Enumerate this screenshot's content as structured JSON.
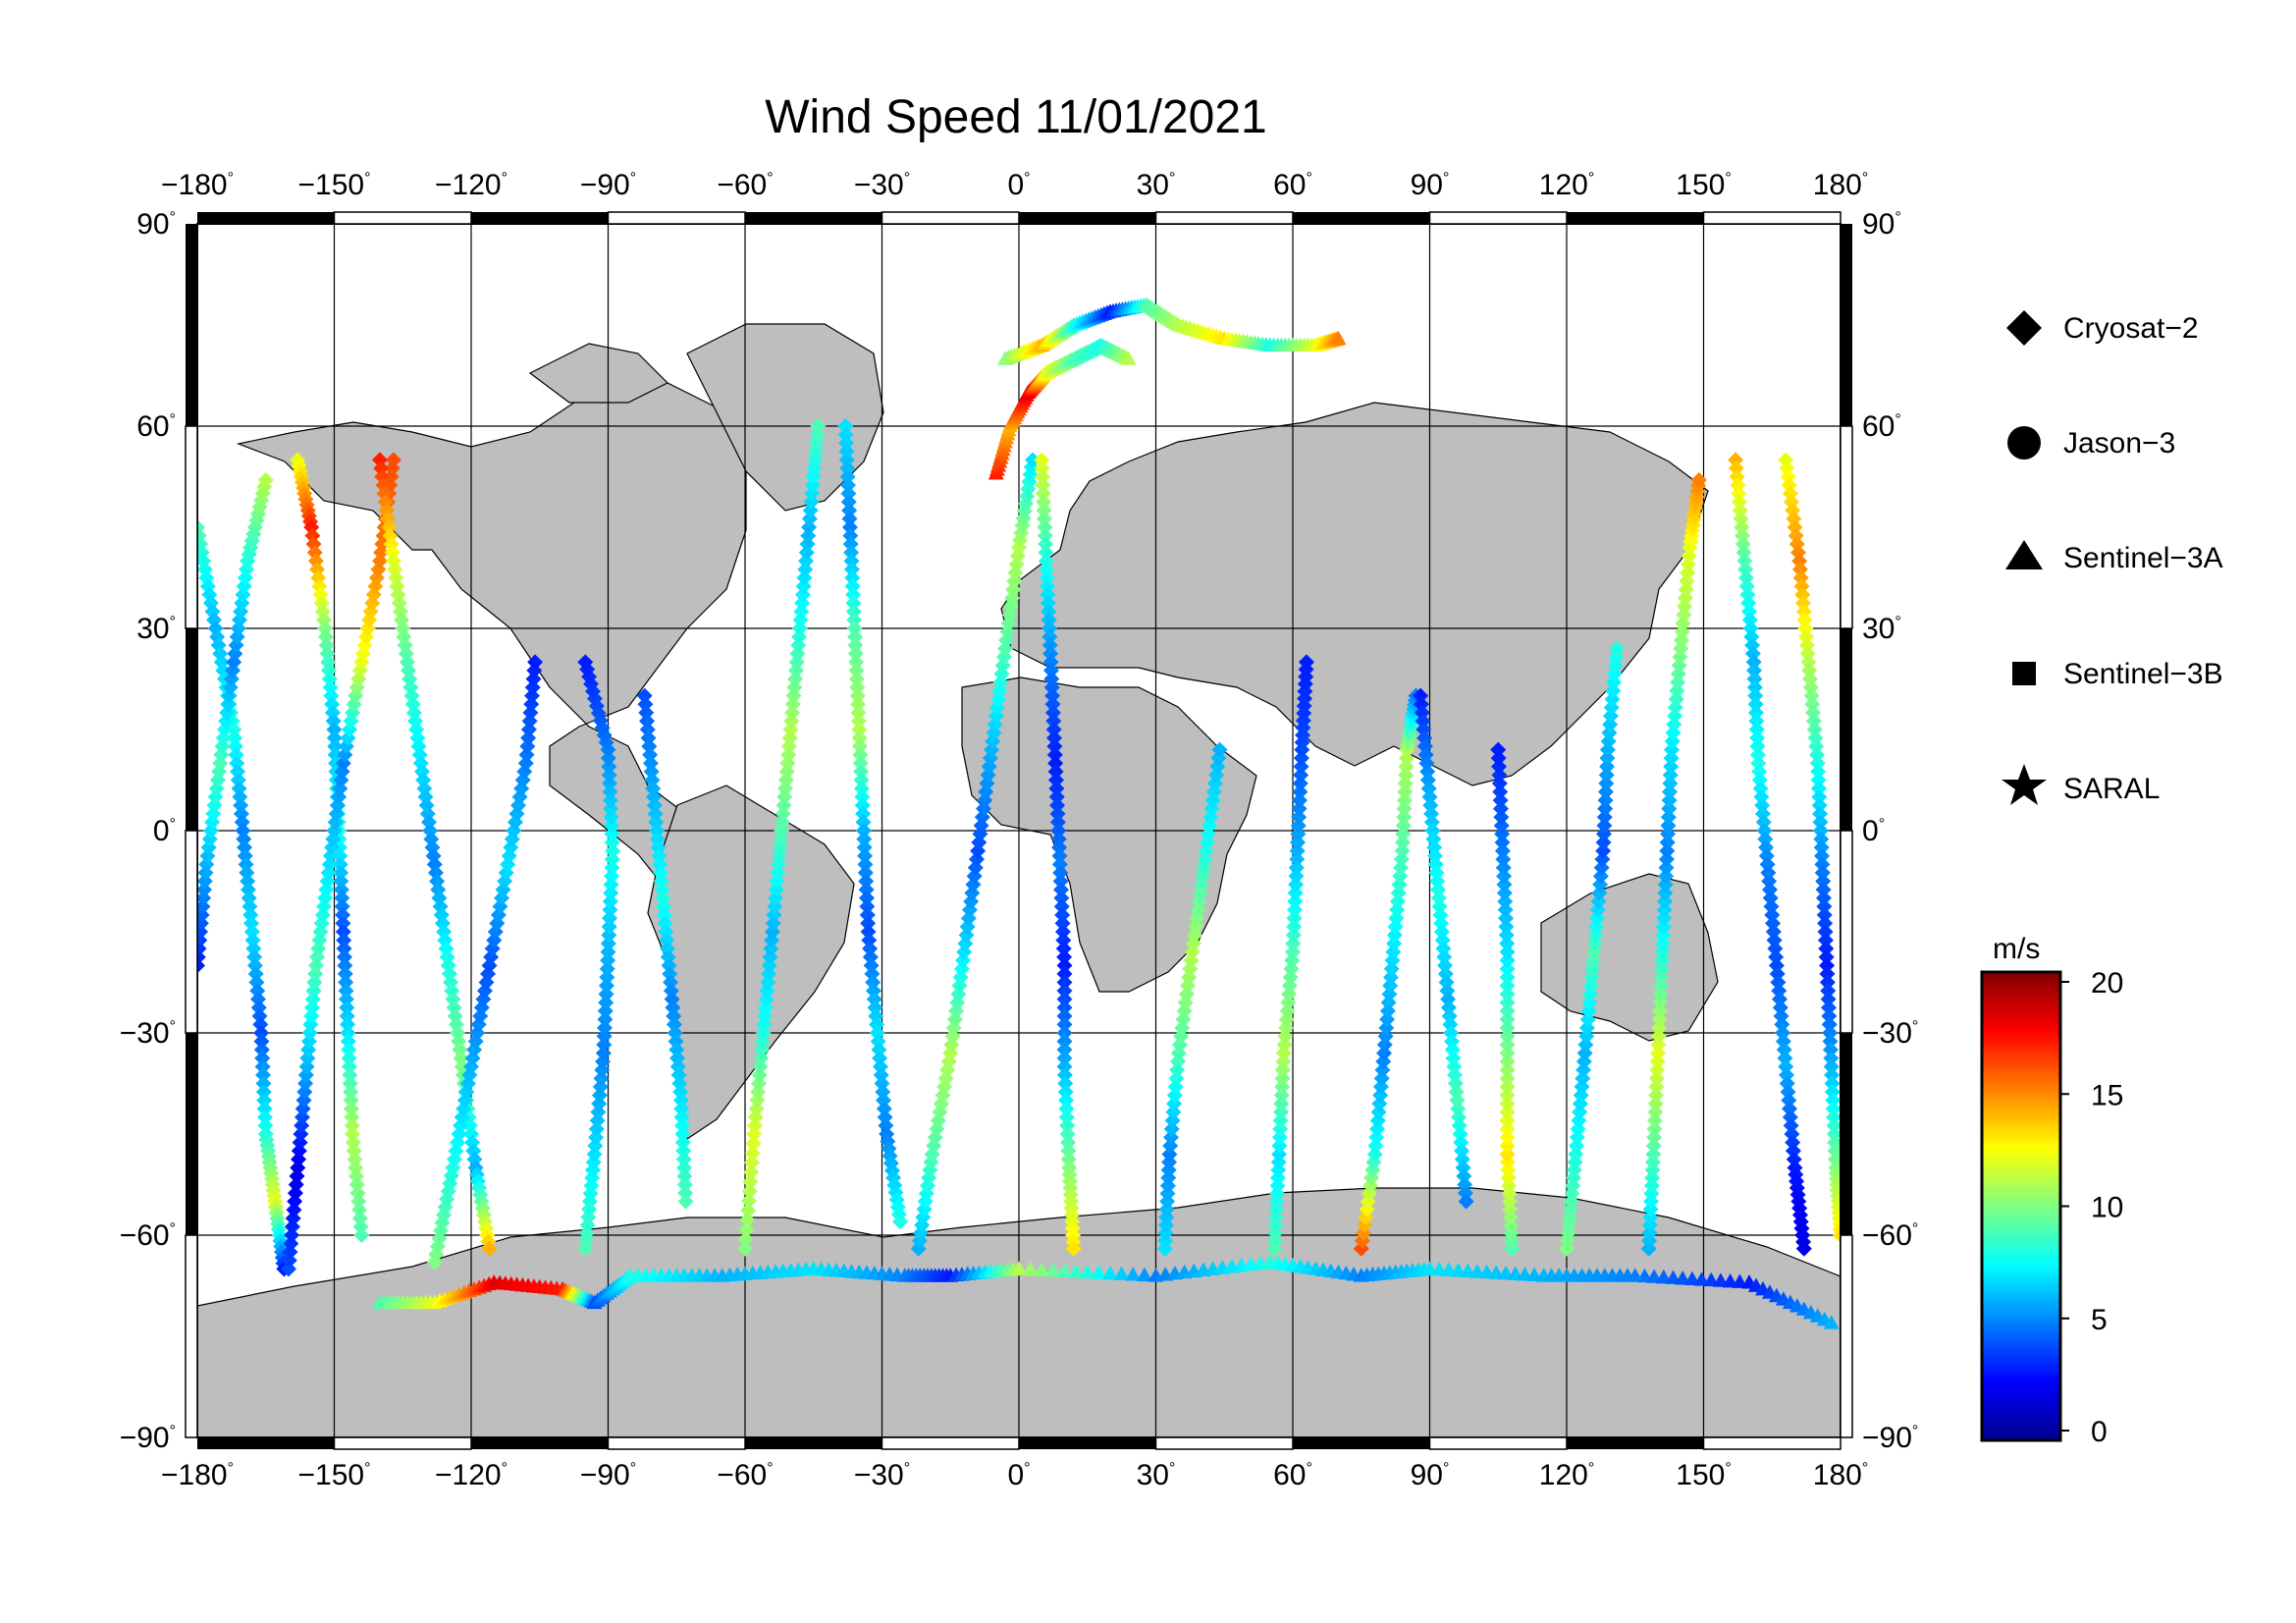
{
  "title": "Wind Speed 11/01/2021",
  "map": {
    "lon_ticks": [
      -180,
      -150,
      -120,
      -90,
      -60,
      -30,
      0,
      30,
      60,
      90,
      120,
      150,
      180
    ],
    "lat_ticks": [
      90,
      60,
      30,
      0,
      -30,
      -60,
      -90
    ],
    "lon_labels": [
      "−180",
      "−150",
      "−120",
      "−90",
      "−60",
      "−30",
      "0",
      "30",
      "60",
      "90",
      "120",
      "150",
      "180"
    ],
    "lat_labels": [
      "90",
      "60",
      "30",
      "0",
      "−30",
      "−60",
      "−90"
    ],
    "degree_symbol": "°",
    "land_color": "#bebebe",
    "ocean_color": "#ffffff",
    "coastline_color": "#000000",
    "grid_color": "#000000"
  },
  "legend": {
    "items": [
      {
        "label": "Cryosat−2",
        "marker": "diamond"
      },
      {
        "label": "Jason−3",
        "marker": "circle"
      },
      {
        "label": "Sentinel−3A",
        "marker": "triangle"
      },
      {
        "label": "Sentinel−3B",
        "marker": "square"
      },
      {
        "label": "SARAL",
        "marker": "star"
      }
    ]
  },
  "colorbar": {
    "unit": "m/s",
    "min": 0,
    "max": 20,
    "ticks": [
      0,
      5,
      10,
      15,
      20
    ],
    "tick_labels": [
      "0",
      "5",
      "10",
      "15",
      "20"
    ],
    "colormap": "jet"
  },
  "chart_data": {
    "type": "scatter",
    "title": "Wind Speed 11/01/2021",
    "xlim": [
      -180,
      180
    ],
    "ylim": [
      -90,
      90
    ],
    "color_variable": "wind speed (m/s)",
    "tracks": [
      {
        "marker": "diamond",
        "points": [
          [
            -180,
            45,
            9
          ],
          [
            -176,
            30,
            6
          ],
          [
            -172,
            15,
            8
          ],
          [
            -170,
            0,
            5
          ],
          [
            -168,
            -15,
            7
          ],
          [
            -166,
            -30,
            4
          ],
          [
            -165,
            -45,
            8
          ],
          [
            -163,
            -55,
            12
          ],
          [
            -161,
            -65,
            3
          ]
        ]
      },
      {
        "marker": "diamond",
        "points": [
          [
            -180,
            -20,
            3
          ],
          [
            -178,
            -5,
            6
          ],
          [
            -175,
            10,
            9
          ],
          [
            -172,
            25,
            5
          ],
          [
            -169,
            40,
            8
          ],
          [
            -165,
            52,
            11
          ]
        ]
      },
      {
        "marker": "diamond",
        "points": [
          [
            -158,
            55,
            12
          ],
          [
            -155,
            45,
            17
          ],
          [
            -152,
            30,
            10
          ],
          [
            -150,
            15,
            6
          ],
          [
            -149,
            0,
            8
          ],
          [
            -148,
            -15,
            4
          ],
          [
            -147,
            -30,
            7
          ],
          [
            -146,
            -45,
            11
          ],
          [
            -144,
            -60,
            9
          ]
        ]
      },
      {
        "marker": "diamond",
        "points": [
          [
            -160,
            -65,
            4
          ],
          [
            -158,
            -50,
            2
          ],
          [
            -156,
            -35,
            6
          ],
          [
            -154,
            -20,
            9
          ],
          [
            -151,
            -5,
            7
          ],
          [
            -148,
            10,
            5
          ],
          [
            -144,
            25,
            12
          ],
          [
            -140,
            40,
            15
          ],
          [
            -137,
            55,
            16
          ]
        ]
      },
      {
        "marker": "diamond",
        "points": [
          [
            -140,
            55,
            17
          ],
          [
            -137,
            40,
            12
          ],
          [
            -134,
            25,
            9
          ],
          [
            -131,
            10,
            7
          ],
          [
            -128,
            -5,
            5
          ],
          [
            -125,
            -20,
            8
          ],
          [
            -122,
            -35,
            10
          ],
          [
            -119,
            -50,
            6
          ],
          [
            -116,
            -62,
            14
          ]
        ]
      },
      {
        "marker": "diamond",
        "points": [
          [
            -128,
            -64,
            10
          ],
          [
            -124,
            -50,
            8
          ],
          [
            -120,
            -35,
            6
          ],
          [
            -116,
            -20,
            4
          ],
          [
            -112,
            -5,
            7
          ],
          [
            -108,
            10,
            5
          ],
          [
            -106,
            25,
            3
          ]
        ]
      },
      {
        "marker": "diamond",
        "points": [
          [
            -95,
            -62,
            9
          ],
          [
            -93,
            -48,
            7
          ],
          [
            -91,
            -33,
            5
          ],
          [
            -90,
            -18,
            6
          ],
          [
            -89,
            -3,
            8
          ],
          [
            -90,
            12,
            5
          ],
          [
            -95,
            25,
            3
          ]
        ]
      },
      {
        "marker": "diamond",
        "points": [
          [
            -82,
            20,
            4
          ],
          [
            -80,
            5,
            6
          ],
          [
            -78,
            -10,
            8
          ],
          [
            -76,
            -25,
            5
          ],
          [
            -74,
            -40,
            7
          ],
          [
            -73,
            -55,
            9
          ]
        ]
      },
      {
        "marker": "diamond",
        "points": [
          [
            -60,
            -62,
            10
          ],
          [
            -58,
            -45,
            12
          ],
          [
            -56,
            -30,
            8
          ],
          [
            -54,
            -15,
            6
          ],
          [
            -52,
            0,
            9
          ],
          [
            -50,
            15,
            11
          ],
          [
            -48,
            30,
            8
          ],
          [
            -46,
            45,
            6
          ],
          [
            -44,
            60,
            9
          ]
        ]
      },
      {
        "marker": "diamond",
        "points": [
          [
            -38,
            60,
            7
          ],
          [
            -37,
            45,
            5
          ],
          [
            -36,
            30,
            9
          ],
          [
            -35,
            15,
            11
          ],
          [
            -34,
            0,
            6
          ],
          [
            -33,
            -15,
            4
          ],
          [
            -31,
            -30,
            7
          ],
          [
            -29,
            -45,
            5
          ],
          [
            -26,
            -58,
            8
          ]
        ]
      },
      {
        "marker": "diamond",
        "points": [
          [
            -22,
            -62,
            6
          ],
          [
            -19,
            -48,
            9
          ],
          [
            -15,
            -33,
            11
          ],
          [
            -12,
            -18,
            7
          ],
          [
            -9,
            -3,
            4
          ],
          [
            -6,
            12,
            6
          ],
          [
            -3,
            27,
            9
          ],
          [
            0,
            42,
            11
          ],
          [
            3,
            55,
            7
          ]
        ]
      },
      {
        "marker": "diamond",
        "points": [
          [
            5,
            55,
            12
          ],
          [
            6,
            40,
            8
          ],
          [
            7,
            25,
            5
          ],
          [
            8,
            10,
            3
          ],
          [
            9,
            -5,
            5
          ],
          [
            10,
            -20,
            3
          ],
          [
            10,
            -35,
            6
          ],
          [
            11,
            -50,
            10
          ],
          [
            12,
            -62,
            13
          ]
        ]
      },
      {
        "marker": "diamond",
        "points": [
          [
            32,
            -62,
            7
          ],
          [
            33,
            -48,
            5
          ],
          [
            35,
            -33,
            9
          ],
          [
            38,
            -18,
            11
          ],
          [
            41,
            -3,
            8
          ],
          [
            44,
            12,
            6
          ]
        ]
      },
      {
        "marker": "diamond",
        "points": [
          [
            56,
            -62,
            9
          ],
          [
            57,
            -48,
            7
          ],
          [
            58,
            -33,
            11
          ],
          [
            60,
            -18,
            9
          ],
          [
            61,
            -3,
            6
          ],
          [
            62,
            12,
            4
          ],
          [
            63,
            25,
            3
          ]
        ]
      },
      {
        "marker": "diamond",
        "points": [
          [
            75,
            -62,
            16
          ],
          [
            78,
            -48,
            8
          ],
          [
            80,
            -33,
            5
          ],
          [
            82,
            -18,
            7
          ],
          [
            84,
            -3,
            9
          ],
          [
            85,
            12,
            11
          ],
          [
            87,
            20,
            5
          ]
        ]
      },
      {
        "marker": "diamond",
        "points": [
          [
            88,
            20,
            3
          ],
          [
            90,
            5,
            6
          ],
          [
            92,
            -10,
            8
          ],
          [
            94,
            -25,
            6
          ],
          [
            96,
            -40,
            9
          ],
          [
            98,
            -55,
            5
          ]
        ]
      },
      {
        "marker": "diamond",
        "points": [
          [
            108,
            -62,
            9
          ],
          [
            107,
            -48,
            13
          ],
          [
            107,
            -33,
            10
          ],
          [
            107,
            -18,
            7
          ],
          [
            106,
            -3,
            5
          ],
          [
            105,
            12,
            3
          ]
        ]
      },
      {
        "marker": "diamond",
        "points": [
          [
            120,
            -62,
            10
          ],
          [
            122,
            -48,
            8
          ],
          [
            124,
            -33,
            6
          ],
          [
            126,
            -18,
            9
          ],
          [
            128,
            -3,
            4
          ],
          [
            129,
            12,
            6
          ],
          [
            131,
            27,
            8
          ]
        ]
      },
      {
        "marker": "diamond",
        "points": [
          [
            138,
            -62,
            6
          ],
          [
            139,
            -48,
            9
          ],
          [
            140,
            -33,
            12
          ],
          [
            141,
            -18,
            8
          ],
          [
            142,
            -3,
            5
          ],
          [
            143,
            12,
            7
          ],
          [
            145,
            27,
            10
          ],
          [
            147,
            42,
            12
          ],
          [
            149,
            52,
            15
          ]
        ]
      },
      {
        "marker": "diamond",
        "points": [
          [
            157,
            55,
            14
          ],
          [
            159,
            40,
            9
          ],
          [
            161,
            25,
            6
          ],
          [
            162,
            10,
            8
          ],
          [
            164,
            -5,
            5
          ],
          [
            166,
            -20,
            4
          ],
          [
            168,
            -35,
            6
          ],
          [
            170,
            -50,
            3
          ],
          [
            172,
            -62,
            2
          ]
        ]
      },
      {
        "marker": "diamond",
        "points": [
          [
            168,
            55,
            12
          ],
          [
            171,
            40,
            15
          ],
          [
            173,
            25,
            11
          ],
          [
            175,
            10,
            8
          ],
          [
            176,
            -5,
            5
          ],
          [
            177,
            -20,
            3
          ],
          [
            178,
            -35,
            6
          ],
          [
            179,
            -50,
            10
          ],
          [
            180,
            -60,
            13
          ]
        ]
      },
      {
        "marker": "triangle",
        "points": [
          [
            -140,
            -70,
            9
          ],
          [
            -128,
            -70,
            12
          ],
          [
            -115,
            -67,
            18
          ],
          [
            -100,
            -68,
            17
          ],
          [
            -93,
            -70,
            4
          ],
          [
            -85,
            -66,
            8
          ],
          [
            -65,
            -66,
            6
          ],
          [
            -45,
            -65,
            7
          ],
          [
            -25,
            -66,
            5
          ],
          [
            -15,
            -66,
            3
          ],
          [
            0,
            -65,
            11
          ],
          [
            30,
            -66,
            5
          ],
          [
            55,
            -64,
            8
          ],
          [
            75,
            -66,
            5
          ],
          [
            90,
            -65,
            7
          ],
          [
            115,
            -66,
            6
          ],
          [
            135,
            -66,
            5
          ],
          [
            160,
            -67,
            3
          ],
          [
            178,
            -73,
            6
          ]
        ]
      },
      {
        "marker": "triangle",
        "points": [
          [
            -3,
            70,
            10
          ],
          [
            5,
            72,
            14
          ],
          [
            12,
            75,
            8
          ],
          [
            20,
            77,
            3
          ],
          [
            28,
            78,
            9
          ],
          [
            35,
            75,
            11
          ],
          [
            45,
            73,
            13
          ],
          [
            55,
            72,
            8
          ],
          [
            65,
            72,
            12
          ],
          [
            70,
            73,
            15
          ]
        ]
      },
      {
        "marker": "triangle",
        "points": [
          [
            -5,
            53,
            17
          ],
          [
            -2,
            60,
            14
          ],
          [
            2,
            65,
            18
          ],
          [
            6,
            68,
            12
          ],
          [
            12,
            70,
            9
          ],
          [
            18,
            72,
            8
          ],
          [
            24,
            70,
            11
          ]
        ]
      }
    ]
  }
}
